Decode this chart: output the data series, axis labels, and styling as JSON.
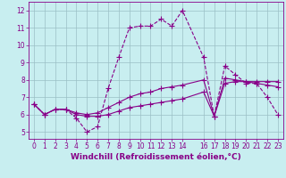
{
  "xlabel": "Windchill (Refroidissement éolien,°C)",
  "bg_color": "#c8eef0",
  "grid_color": "#9bbfc5",
  "line_color": "#880088",
  "xlim": [
    -0.5,
    23.5
  ],
  "ylim": [
    4.6,
    12.5
  ],
  "xticks": [
    0,
    1,
    2,
    3,
    4,
    5,
    6,
    7,
    8,
    9,
    10,
    11,
    12,
    13,
    14,
    16,
    17,
    18,
    19,
    20,
    21,
    22,
    23
  ],
  "yticks": [
    5,
    6,
    7,
    8,
    9,
    10,
    11,
    12
  ],
  "line1_x": [
    0,
    1,
    2,
    3,
    4,
    5,
    6,
    7,
    8,
    9,
    10,
    11,
    12,
    13,
    14,
    16,
    17,
    18,
    19,
    20,
    21,
    22,
    23
  ],
  "line1_y": [
    6.6,
    6.0,
    6.3,
    6.3,
    5.8,
    5.0,
    5.3,
    7.5,
    9.3,
    11.0,
    11.1,
    11.1,
    11.5,
    11.1,
    12.0,
    9.3,
    5.9,
    8.8,
    8.3,
    7.8,
    7.8,
    7.0,
    6.0
  ],
  "line2_x": [
    0,
    1,
    2,
    3,
    4,
    5,
    6,
    7,
    8,
    9,
    10,
    11,
    12,
    13,
    14,
    16,
    17,
    18,
    19,
    20,
    21,
    22,
    23
  ],
  "line2_y": [
    6.6,
    6.0,
    6.3,
    6.3,
    6.0,
    5.9,
    5.9,
    6.0,
    6.2,
    6.4,
    6.5,
    6.6,
    6.7,
    6.8,
    6.9,
    7.3,
    5.9,
    7.8,
    7.9,
    7.9,
    7.9,
    7.9,
    7.9
  ],
  "line3_x": [
    0,
    1,
    2,
    3,
    4,
    5,
    6,
    7,
    8,
    9,
    10,
    11,
    12,
    13,
    14,
    16,
    17,
    18,
    19,
    20,
    21,
    22,
    23
  ],
  "line3_y": [
    6.6,
    6.0,
    6.3,
    6.3,
    6.1,
    6.0,
    6.1,
    6.4,
    6.7,
    7.0,
    7.2,
    7.3,
    7.5,
    7.6,
    7.7,
    8.0,
    5.9,
    8.1,
    8.0,
    7.9,
    7.8,
    7.7,
    7.6
  ],
  "markersize": 3,
  "linewidth": 0.8,
  "xlabel_fontsize": 6.5,
  "tick_fontsize": 5.5
}
